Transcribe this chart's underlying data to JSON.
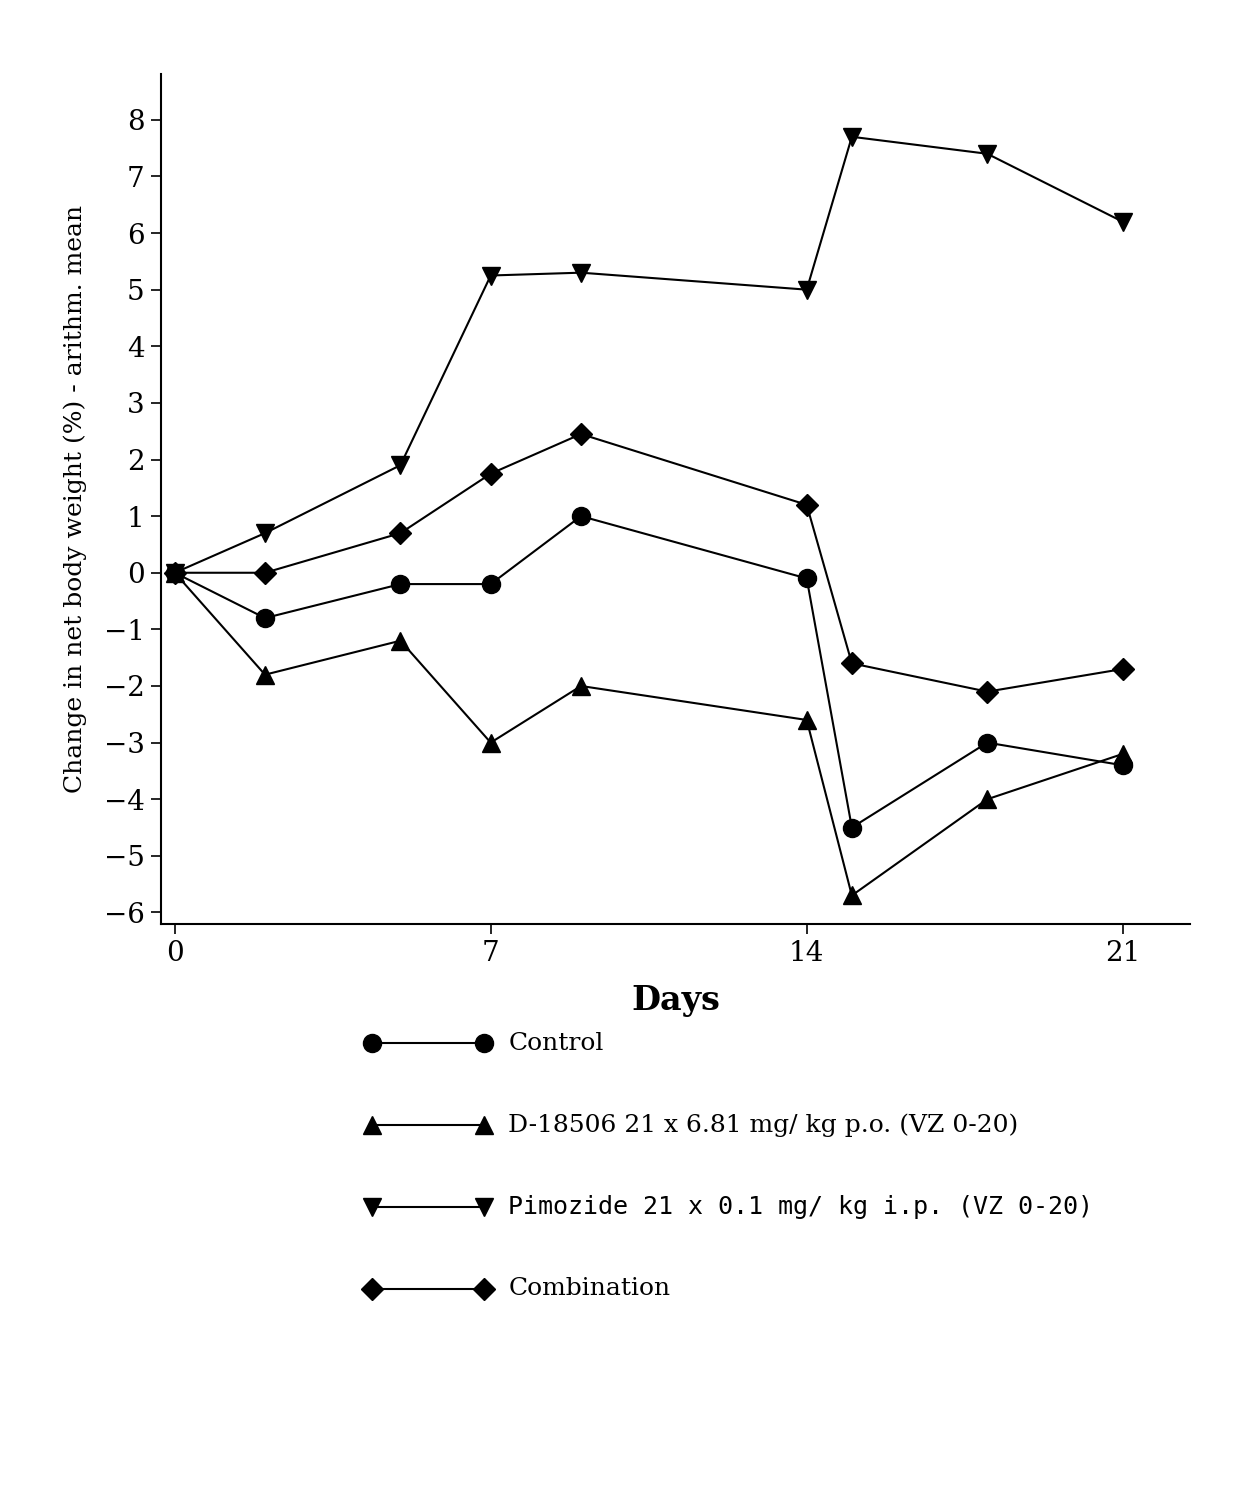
{
  "title": "",
  "xlabel": "Days",
  "ylabel": "Change in net body weight (%) - arithm. mean",
  "xlim": [
    -0.3,
    22.5
  ],
  "ylim": [
    -6.2,
    8.8
  ],
  "yticks": [
    -6,
    -5,
    -4,
    -3,
    -2,
    -1,
    0,
    1,
    2,
    3,
    4,
    5,
    6,
    7,
    8
  ],
  "xticks": [
    0,
    7,
    14,
    21
  ],
  "control": {
    "x": [
      0,
      2,
      5,
      7,
      9,
      14,
      15,
      18,
      21
    ],
    "y": [
      0,
      -0.8,
      -0.2,
      -0.2,
      1.0,
      -0.1,
      -4.5,
      -3.0,
      -3.4
    ],
    "label": "Control",
    "marker": "o",
    "markersize": 13
  },
  "d18506": {
    "x": [
      0,
      2,
      5,
      7,
      9,
      14,
      15,
      18,
      21
    ],
    "y": [
      0,
      -1.8,
      -1.2,
      -3.0,
      -2.0,
      -2.6,
      -5.7,
      -4.0,
      -3.2
    ],
    "label": "D-18506 21 x 6.81 mg/ kg p.o. (VZ 0-20)",
    "marker": "^",
    "markersize": 13
  },
  "pimozide": {
    "x": [
      0,
      2,
      5,
      7,
      9,
      14,
      15,
      18,
      21
    ],
    "y": [
      0,
      0.7,
      1.9,
      5.25,
      5.3,
      5.0,
      7.7,
      7.4,
      6.2
    ],
    "label": "Pimozide 21 x 0.1 mg/ kg i.p. (VZ 0-20)",
    "marker": "v",
    "markersize": 13
  },
  "combination": {
    "x": [
      0,
      2,
      5,
      7,
      9,
      14,
      15,
      18,
      21
    ],
    "y": [
      0,
      0.0,
      0.7,
      1.75,
      2.45,
      1.2,
      -1.6,
      -2.1,
      -1.7
    ],
    "label": "Combination",
    "marker": "D",
    "markersize": 11
  },
  "line_color": "#000000",
  "background_color": "#ffffff",
  "linewidth": 1.5
}
